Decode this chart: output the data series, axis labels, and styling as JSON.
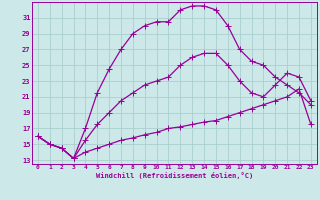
{
  "xlabel": "Windchill (Refroidissement éolien,°C)",
  "bg_color": "#cce8e8",
  "grid_color": "#aacece",
  "line_color": "#990099",
  "xlim": [
    -0.5,
    23.5
  ],
  "ylim": [
    12.5,
    33.0
  ],
  "xticks": [
    0,
    1,
    2,
    3,
    4,
    5,
    6,
    7,
    8,
    9,
    10,
    11,
    12,
    13,
    14,
    15,
    16,
    17,
    18,
    19,
    20,
    21,
    22,
    23
  ],
  "yticks": [
    13,
    15,
    17,
    19,
    21,
    23,
    25,
    27,
    29,
    31
  ],
  "line1_x": [
    0,
    1,
    2,
    3,
    4,
    5,
    6,
    7,
    8,
    9,
    10,
    11,
    12,
    13,
    14,
    15,
    16,
    17,
    18,
    19,
    20,
    21,
    22,
    23
  ],
  "line1_y": [
    16.0,
    15.0,
    14.5,
    13.2,
    14.0,
    14.5,
    15.0,
    15.5,
    15.8,
    16.2,
    16.5,
    17.0,
    17.2,
    17.5,
    17.8,
    18.0,
    18.5,
    19.0,
    19.5,
    20.0,
    20.5,
    21.0,
    22.0,
    17.5
  ],
  "line2_x": [
    0,
    1,
    2,
    3,
    4,
    5,
    6,
    7,
    8,
    9,
    10,
    11,
    12,
    13,
    14,
    15,
    16,
    17,
    18,
    19,
    20,
    21,
    22,
    23
  ],
  "line2_y": [
    16.0,
    15.0,
    14.5,
    13.2,
    17.0,
    21.5,
    24.5,
    27.0,
    29.0,
    30.0,
    30.5,
    30.5,
    32.0,
    32.5,
    32.5,
    32.0,
    30.0,
    27.0,
    25.5,
    25.0,
    23.5,
    22.5,
    21.5,
    20.0
  ],
  "line3_x": [
    0,
    1,
    2,
    3,
    4,
    5,
    6,
    7,
    8,
    9,
    10,
    11,
    12,
    13,
    14,
    15,
    16,
    17,
    18,
    19,
    20,
    21,
    22,
    23
  ],
  "line3_y": [
    16.0,
    15.0,
    14.5,
    13.2,
    15.5,
    17.5,
    19.0,
    20.5,
    21.5,
    22.5,
    23.0,
    23.5,
    25.0,
    26.0,
    26.5,
    26.5,
    25.0,
    23.0,
    21.5,
    21.0,
    22.5,
    24.0,
    23.5,
    20.5
  ]
}
